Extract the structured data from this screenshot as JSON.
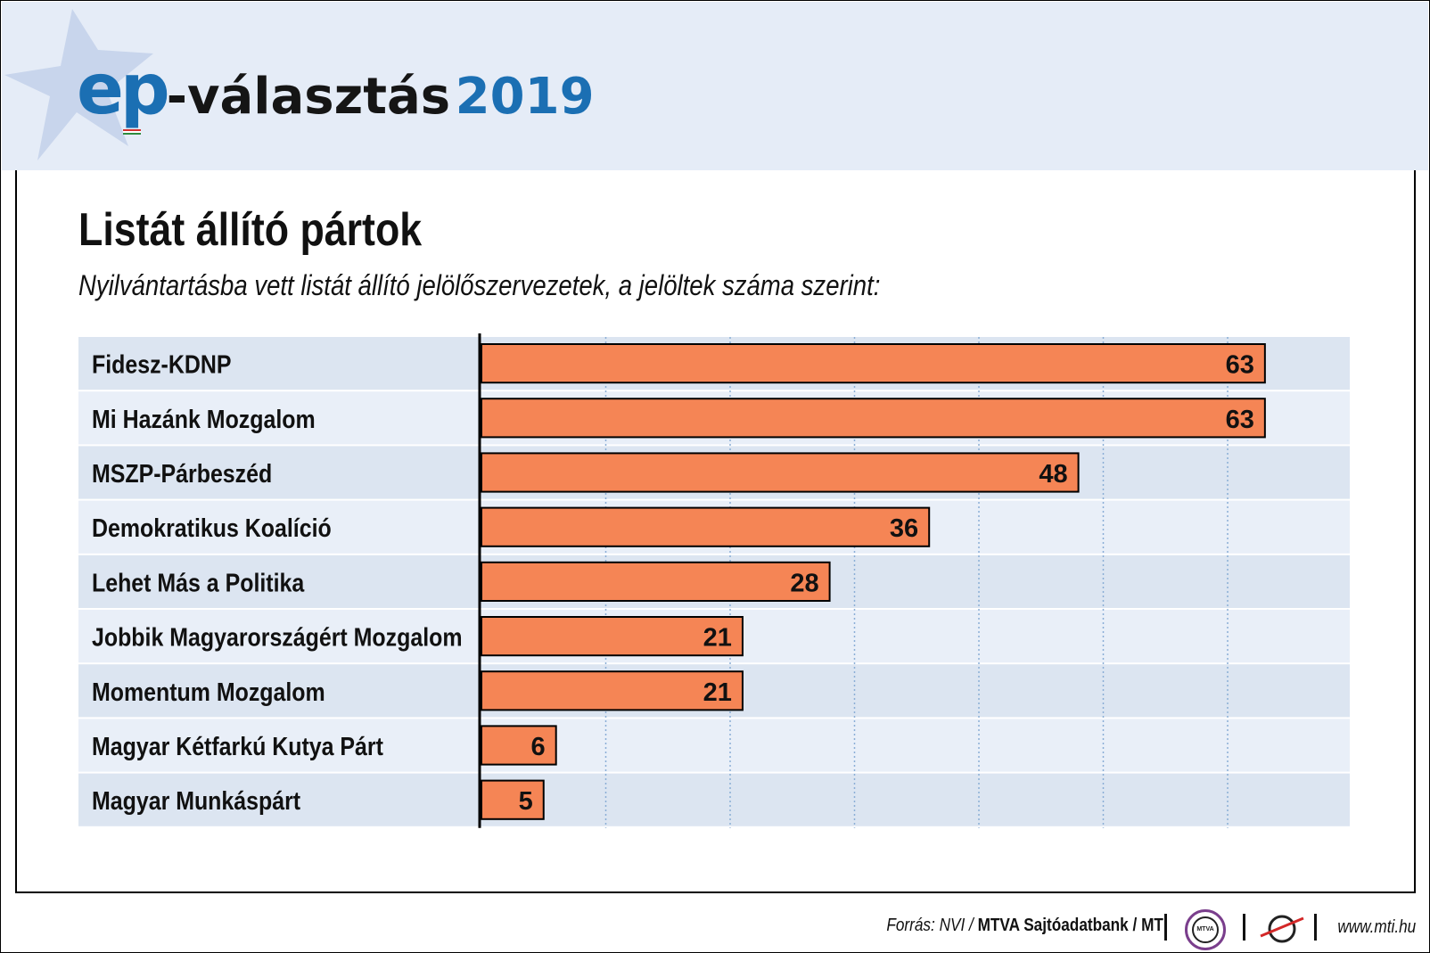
{
  "header": {
    "logo_ep": "ep",
    "logo_word": "-választás",
    "logo_year": "2019",
    "colors": {
      "accent_blue": "#1b6fb3",
      "header_bg": "#e5ecf7",
      "star": "#c5d3ec"
    }
  },
  "chart_data": {
    "type": "bar",
    "orientation": "horizontal",
    "title": "Listát állító pártok",
    "subtitle": "Nyilvántartásba vett listát állító jelölőszervezetek, a jelöltek száma szerint:",
    "categories": [
      "Fidesz-KDNP",
      "Mi Hazánk Mozgalom",
      "MSZP-Párbeszéd",
      "Demokratikus Koalíció",
      "Lehet Más a Politika",
      "Jobbik Magyarországért Mozgalom",
      "Momentum Mozgalom",
      "Magyar Kétfarkú Kutya Párt",
      "Magyar Munkáspárt"
    ],
    "values": [
      63,
      63,
      48,
      36,
      28,
      21,
      21,
      6,
      5
    ],
    "xlim": [
      0,
      70
    ],
    "grid_step": 10,
    "grid": true,
    "data_labels": true,
    "colors": {
      "bar": "#f58555",
      "row_dark": "#dce5f1",
      "row_light": "#e9eff8",
      "grid": "#8aaed6"
    }
  },
  "footer": {
    "source_prefix": "Forrás: NVI / ",
    "source_bold": "MTVA Sajtóadatbank / MTI",
    "mtva_logo_text": "MTVA",
    "website": "www.mti.hu"
  }
}
